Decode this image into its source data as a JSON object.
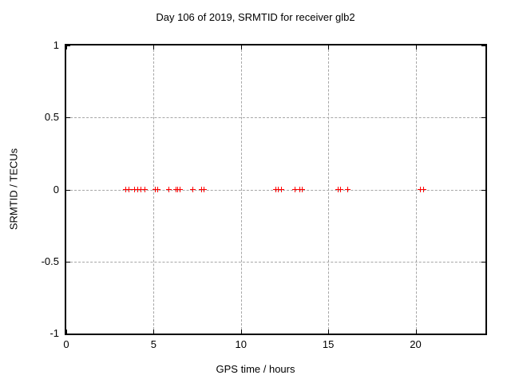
{
  "chart_data": {
    "type": "scatter",
    "title": "Day 106 of 2019, SRMTID for receiver glb2",
    "xlabel": "GPS time / hours",
    "ylabel": "SRMTID / TECUs",
    "xlim": [
      0,
      24
    ],
    "ylim": [
      -1,
      1
    ],
    "xticks": [
      0,
      5,
      10,
      15,
      20
    ],
    "xtick_labels": [
      "0",
      "5",
      "10",
      "15",
      "20"
    ],
    "yticks": [
      1,
      0.5,
      0,
      -0.5,
      -1
    ],
    "ytick_labels": [
      "1",
      "0.5",
      "0",
      "-0.5",
      "-1"
    ],
    "grid": true,
    "legend_position": "none",
    "marker": "plus",
    "colors": {
      "marker": "#ff0000",
      "grid": "#a6a6a6",
      "border": "#000000",
      "text": "#000000",
      "background": "#ffffff"
    },
    "series": [
      {
        "name": "SRMTID",
        "x": [
          3.44,
          3.6,
          3.93,
          4.1,
          4.28,
          4.53,
          5.11,
          5.27,
          5.9,
          6.3,
          6.42,
          6.55,
          7.25,
          7.76,
          7.9,
          12.02,
          12.18,
          12.33,
          13.12,
          13.38,
          13.51,
          15.59,
          15.74,
          16.14,
          20.3,
          20.48
        ],
        "y": [
          0,
          0,
          0,
          0,
          0,
          0,
          0,
          0,
          0,
          0,
          0,
          0,
          0,
          0,
          0,
          0,
          0,
          0,
          0,
          0,
          0,
          0,
          0,
          0,
          0,
          0
        ]
      }
    ]
  }
}
